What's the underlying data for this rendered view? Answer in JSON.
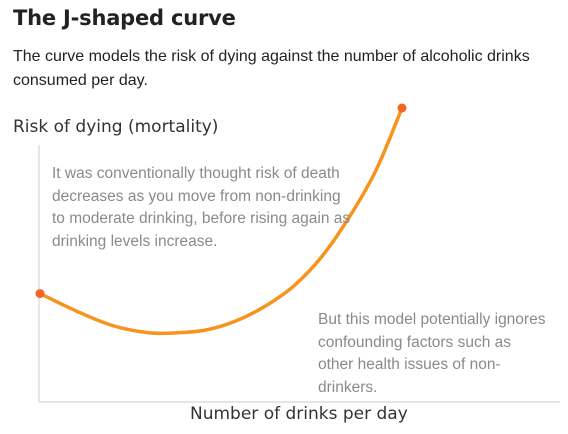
{
  "chart_data": {
    "type": "line",
    "title": "The J-shaped curve",
    "subtitle": "The curve models the risk of dying against the number of alcoholic drinks consumed per day.",
    "ylabel": "Risk of dying (mortality)",
    "xlabel": "Number of drinks per day",
    "grid": false,
    "legend": "none",
    "xlim": [
      0,
      100
    ],
    "ylim": [
      0,
      100
    ],
    "series": [
      {
        "color": "#f7941d",
        "marker_color": "#f26522",
        "x": [
          0,
          10,
          20,
          30,
          38,
          46,
          54,
          62,
          70,
          78,
          86,
          93,
          100
        ],
        "y": [
          36,
          30,
          25,
          22.5,
          22.5,
          23.5,
          26.5,
          31.5,
          38.5,
          49,
          63.5,
          79,
          100
        ]
      }
    ],
    "annotations": [
      {
        "text": "It was conventionally thought risk of death decreases as you move from non-drinking to moderate drinking, before rising again as drinking levels increase."
      },
      {
        "text": "But this model potentially ignores confounding factors such as other health issues of non-drinkers."
      }
    ]
  }
}
